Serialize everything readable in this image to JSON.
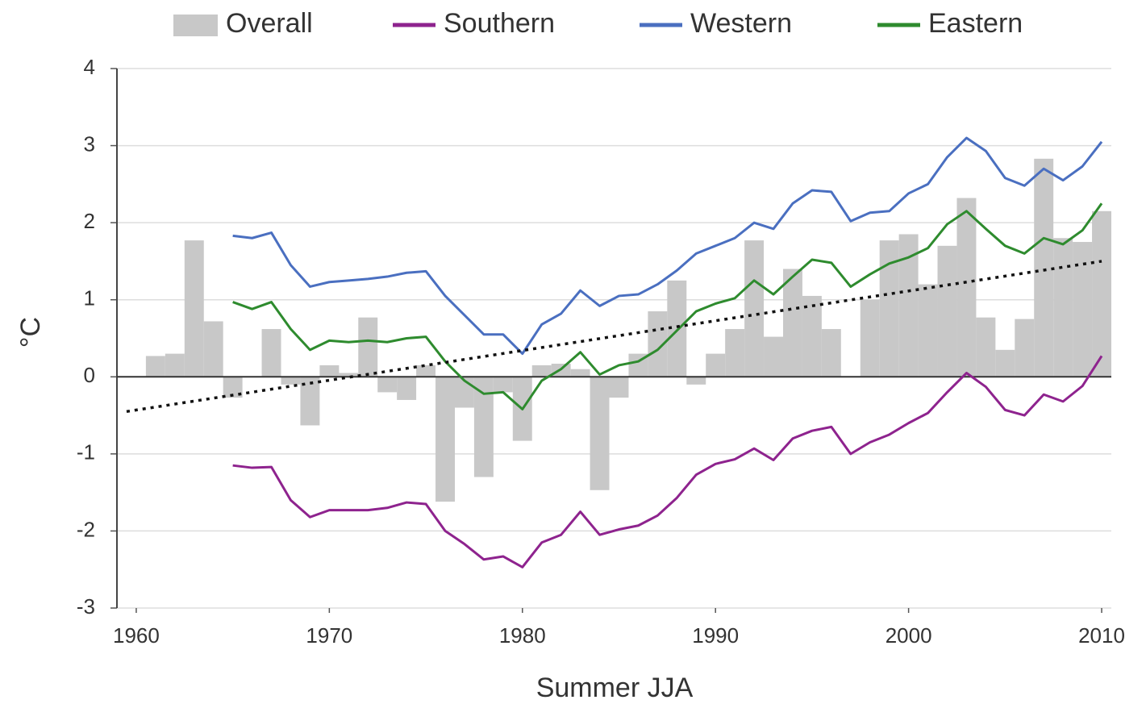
{
  "chart_data": {
    "type": "bar-line",
    "xlabel": "Summer JJA",
    "ylabel": "°C",
    "xlim": [
      1959,
      2010.5
    ],
    "xticks": [
      1960,
      1970,
      1980,
      1990,
      2000,
      2010
    ],
    "ylim": [
      -3,
      4
    ],
    "yticks": [
      4,
      3,
      2,
      1,
      0,
      -1,
      -2,
      -3
    ],
    "grid": true,
    "series": [
      {
        "name": "Overall",
        "color": "#c8c8c8",
        "kind": "bar",
        "x": [
          1961,
          1962,
          1963,
          1964,
          1965,
          1966,
          1967,
          1968,
          1969,
          1970,
          1971,
          1972,
          1973,
          1974,
          1975,
          1976,
          1977,
          1978,
          1979,
          1980,
          1981,
          1982,
          1983,
          1984,
          1985,
          1986,
          1987,
          1988,
          1989,
          1990,
          1991,
          1992,
          1993,
          1994,
          1995,
          1996,
          1997,
          1998,
          1999,
          2000,
          2001,
          2002,
          2003,
          2004,
          2005,
          2006,
          2007,
          2008,
          2009,
          2010
        ],
        "values": [
          0.27,
          0.3,
          1.77,
          0.72,
          -0.27,
          0,
          0.62,
          -0.1,
          -0.63,
          0.15,
          0.05,
          0.77,
          -0.2,
          -0.3,
          0.15,
          -1.62,
          -0.4,
          -1.3,
          -0.2,
          -0.83,
          0.15,
          0.17,
          0.1,
          -1.47,
          -0.27,
          0.3,
          0.85,
          1.25,
          -0.1,
          0.3,
          0.62,
          1.77,
          0.52,
          1.4,
          1.05,
          0.62,
          0,
          1.0,
          1.77,
          1.85,
          1.2,
          1.7,
          2.32,
          0.77,
          0.35,
          0.75,
          2.83,
          1.8,
          1.75,
          2.15
        ]
      },
      {
        "name": "Southern",
        "color": "#8e238e",
        "kind": "line",
        "x": [
          1965,
          1966,
          1967,
          1968,
          1969,
          1970,
          1971,
          1972,
          1973,
          1974,
          1975,
          1976,
          1977,
          1978,
          1979,
          1980,
          1981,
          1982,
          1983,
          1984,
          1985,
          1986,
          1987,
          1988,
          1989,
          1990,
          1991,
          1992,
          1993,
          1994,
          1995,
          1996,
          1997,
          1998,
          1999,
          2000,
          2001,
          2002,
          2003,
          2004,
          2005,
          2006,
          2007,
          2008,
          2009,
          2010
        ],
        "values": [
          -1.15,
          -1.18,
          -1.17,
          -1.6,
          -1.82,
          -1.73,
          -1.73,
          -1.73,
          -1.7,
          -1.63,
          -1.65,
          -2.0,
          -2.17,
          -2.37,
          -2.33,
          -2.47,
          -2.15,
          -2.05,
          -1.75,
          -2.05,
          -1.98,
          -1.93,
          -1.8,
          -1.57,
          -1.27,
          -1.13,
          -1.07,
          -0.93,
          -1.08,
          -0.8,
          -0.7,
          -0.65,
          -1.0,
          -0.85,
          -0.75,
          -0.6,
          -0.47,
          -0.2,
          0.05,
          -0.13,
          -0.43,
          -0.5,
          -0.23,
          -0.32,
          -0.12,
          0.27
        ]
      },
      {
        "name": "Western",
        "color": "#4a6fc0",
        "kind": "line",
        "x": [
          1965,
          1966,
          1967,
          1968,
          1969,
          1970,
          1971,
          1972,
          1973,
          1974,
          1975,
          1976,
          1977,
          1978,
          1979,
          1980,
          1981,
          1982,
          1983,
          1984,
          1985,
          1986,
          1987,
          1988,
          1989,
          1990,
          1991,
          1992,
          1993,
          1994,
          1995,
          1996,
          1997,
          1998,
          1999,
          2000,
          2001,
          2002,
          2003,
          2004,
          2005,
          2006,
          2007,
          2008,
          2009,
          2010
        ],
        "values": [
          1.83,
          1.8,
          1.87,
          1.45,
          1.17,
          1.23,
          1.25,
          1.27,
          1.3,
          1.35,
          1.37,
          1.05,
          0.8,
          0.55,
          0.55,
          0.3,
          0.68,
          0.82,
          1.12,
          0.92,
          1.05,
          1.07,
          1.2,
          1.38,
          1.6,
          1.7,
          1.8,
          2.0,
          1.92,
          2.25,
          2.42,
          2.4,
          2.02,
          2.13,
          2.15,
          2.38,
          2.5,
          2.85,
          3.1,
          2.93,
          2.58,
          2.48,
          2.7,
          2.55,
          2.73,
          3.05
        ]
      },
      {
        "name": "Eastern",
        "color": "#2e8b2e",
        "kind": "line",
        "x": [
          1965,
          1966,
          1967,
          1968,
          1969,
          1970,
          1971,
          1972,
          1973,
          1974,
          1975,
          1976,
          1977,
          1978,
          1979,
          1980,
          1981,
          1982,
          1983,
          1984,
          1985,
          1986,
          1987,
          1988,
          1989,
          1990,
          1991,
          1992,
          1993,
          1994,
          1995,
          1996,
          1997,
          1998,
          1999,
          2000,
          2001,
          2002,
          2003,
          2004,
          2005,
          2006,
          2007,
          2008,
          2009,
          2010
        ],
        "values": [
          0.97,
          0.88,
          0.97,
          0.62,
          0.35,
          0.47,
          0.45,
          0.47,
          0.45,
          0.5,
          0.52,
          0.2,
          -0.05,
          -0.22,
          -0.2,
          -0.42,
          -0.05,
          0.1,
          0.32,
          0.03,
          0.15,
          0.2,
          0.35,
          0.6,
          0.85,
          0.95,
          1.02,
          1.25,
          1.07,
          1.3,
          1.52,
          1.48,
          1.17,
          1.33,
          1.47,
          1.55,
          1.67,
          1.98,
          2.15,
          1.92,
          1.7,
          1.6,
          1.8,
          1.72,
          1.9,
          2.25
        ]
      }
    ],
    "trend": {
      "color": "#111111",
      "x": [
        1959.5,
        2010
      ],
      "values": [
        -0.45,
        1.5
      ]
    }
  }
}
